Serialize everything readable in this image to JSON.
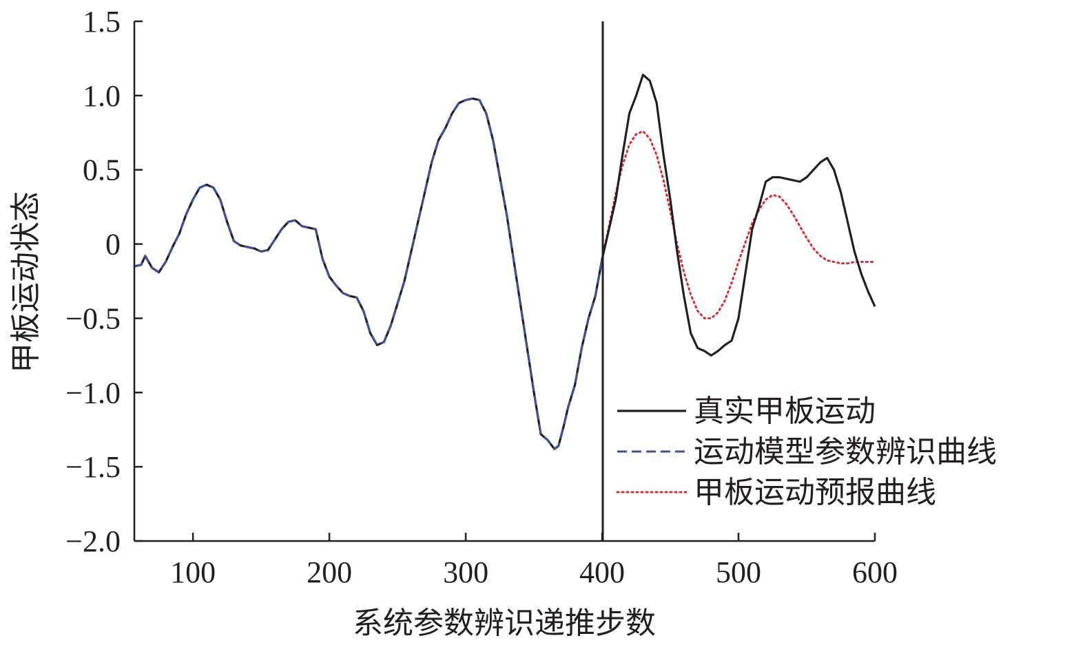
{
  "chart_data": {
    "type": "line",
    "title": "",
    "xlabel": "系统参数辨识递推步数",
    "ylabel": "甲板运动状态",
    "xlim": [
      57,
      600
    ],
    "ylim": [
      -2.0,
      1.5
    ],
    "xticks": [
      100,
      200,
      300,
      400,
      500,
      600
    ],
    "xtick_labels": [
      "100",
      "200",
      "300",
      "400",
      "500",
      "600"
    ],
    "yticks": [
      1.5,
      1.0,
      0.5,
      0,
      -0.5,
      -1.0,
      -1.5,
      -2.0
    ],
    "ytick_labels": [
      "1.5",
      "1.0",
      "0.5",
      "0",
      "−0.5",
      "−1.0",
      "−1.5",
      "−2.0"
    ],
    "grid": false,
    "legend_position": "lower-right",
    "annotations": [
      {
        "type": "vertical_line",
        "x": 400
      }
    ],
    "series": [
      {
        "name": "真实甲板运动",
        "color": "#231f20",
        "style": "solid",
        "x": [
          57,
          62,
          65,
          70,
          75,
          80,
          85,
          90,
          95,
          100,
          105,
          110,
          115,
          120,
          125,
          130,
          135,
          140,
          145,
          150,
          155,
          160,
          165,
          170,
          175,
          180,
          185,
          190,
          195,
          200,
          205,
          210,
          215,
          220,
          225,
          230,
          235,
          240,
          245,
          250,
          255,
          260,
          265,
          270,
          275,
          280,
          285,
          290,
          295,
          300,
          305,
          310,
          315,
          320,
          325,
          330,
          335,
          340,
          345,
          350,
          355,
          360,
          365,
          368,
          372,
          375,
          380,
          385,
          390,
          395,
          400,
          405,
          410,
          415,
          420,
          425,
          430,
          435,
          440,
          445,
          450,
          455,
          460,
          465,
          470,
          475,
          480,
          485,
          490,
          495,
          500,
          505,
          510,
          515,
          520,
          525,
          530,
          535,
          540,
          545,
          550,
          555,
          560,
          565,
          570,
          575,
          580,
          585,
          590,
          595,
          600
        ],
        "y": [
          -0.15,
          -0.14,
          -0.08,
          -0.16,
          -0.19,
          -0.12,
          -0.02,
          0.07,
          0.2,
          0.3,
          0.38,
          0.4,
          0.38,
          0.3,
          0.15,
          0.02,
          -0.01,
          -0.02,
          -0.03,
          -0.05,
          -0.04,
          0.03,
          0.1,
          0.15,
          0.16,
          0.12,
          0.11,
          0.1,
          -0.1,
          -0.22,
          -0.28,
          -0.33,
          -0.35,
          -0.36,
          -0.45,
          -0.6,
          -0.68,
          -0.66,
          -0.55,
          -0.4,
          -0.25,
          -0.05,
          0.15,
          0.35,
          0.55,
          0.7,
          0.78,
          0.88,
          0.95,
          0.97,
          0.98,
          0.97,
          0.88,
          0.7,
          0.45,
          0.2,
          -0.1,
          -0.4,
          -0.7,
          -1.0,
          -1.28,
          -1.32,
          -1.38,
          -1.36,
          -1.22,
          -1.1,
          -0.95,
          -0.7,
          -0.5,
          -0.35,
          -0.1,
          0.1,
          0.3,
          0.6,
          0.88,
          1.0,
          1.14,
          1.1,
          0.95,
          0.6,
          0.3,
          -0.05,
          -0.35,
          -0.6,
          -0.7,
          -0.72,
          -0.75,
          -0.72,
          -0.68,
          -0.65,
          -0.5,
          -0.2,
          0.1,
          0.25,
          0.42,
          0.45,
          0.45,
          0.44,
          0.43,
          0.42,
          0.45,
          0.5,
          0.55,
          0.58,
          0.5,
          0.35,
          0.15,
          -0.05,
          -0.2,
          -0.32,
          -0.42
        ]
      },
      {
        "name": "运动模型参数辨识曲线",
        "color": "#3c4fa0",
        "style": "dashed",
        "x": [
          57,
          62,
          65,
          70,
          75,
          80,
          85,
          90,
          95,
          100,
          105,
          110,
          115,
          120,
          125,
          130,
          135,
          140,
          145,
          150,
          155,
          160,
          165,
          170,
          175,
          180,
          185,
          190,
          195,
          200,
          205,
          210,
          215,
          220,
          225,
          230,
          235,
          240,
          245,
          250,
          255,
          260,
          265,
          270,
          275,
          280,
          285,
          290,
          295,
          300,
          305,
          310,
          315,
          320,
          325,
          330,
          335,
          340,
          345,
          350,
          355,
          360,
          365,
          368,
          372,
          375,
          380,
          385,
          390,
          395,
          400
        ],
        "y": [
          -0.15,
          -0.14,
          -0.08,
          -0.16,
          -0.19,
          -0.12,
          -0.02,
          0.07,
          0.2,
          0.3,
          0.38,
          0.4,
          0.38,
          0.3,
          0.15,
          0.02,
          -0.01,
          -0.02,
          -0.03,
          -0.05,
          -0.04,
          0.03,
          0.1,
          0.15,
          0.16,
          0.12,
          0.11,
          0.1,
          -0.1,
          -0.22,
          -0.28,
          -0.33,
          -0.35,
          -0.36,
          -0.45,
          -0.6,
          -0.68,
          -0.66,
          -0.55,
          -0.4,
          -0.25,
          -0.05,
          0.15,
          0.35,
          0.55,
          0.7,
          0.78,
          0.88,
          0.95,
          0.97,
          0.98,
          0.97,
          0.88,
          0.7,
          0.45,
          0.2,
          -0.1,
          -0.4,
          -0.7,
          -1.0,
          -1.28,
          -1.32,
          -1.38,
          -1.36,
          -1.22,
          -1.1,
          -0.95,
          -0.7,
          -0.5,
          -0.35,
          -0.1
        ]
      },
      {
        "name": "甲板运动预报曲线",
        "color": "#e5252a",
        "style": "dotted",
        "x": [
          57,
          62,
          65,
          70,
          75,
          80,
          85,
          90,
          95,
          100,
          105,
          110,
          115,
          120,
          125,
          130,
          135,
          140,
          145,
          150,
          155,
          160,
          165,
          170,
          175,
          180,
          185,
          190,
          195,
          200,
          205,
          210,
          215,
          220,
          225,
          230,
          235,
          240,
          245,
          250,
          255,
          260,
          265,
          270,
          275,
          280,
          285,
          290,
          295,
          300,
          305,
          310,
          315,
          320,
          325,
          330,
          335,
          340,
          345,
          350,
          355,
          360,
          365,
          368,
          372,
          375,
          380,
          385,
          390,
          395,
          400,
          405,
          410,
          415,
          420,
          425,
          430,
          435,
          440,
          445,
          450,
          455,
          460,
          465,
          470,
          475,
          480,
          485,
          490,
          495,
          500,
          505,
          510,
          515,
          520,
          525,
          530,
          535,
          540,
          545,
          550,
          555,
          560,
          565,
          570,
          575,
          580,
          585,
          590,
          595,
          600
        ],
        "y": [
          -0.15,
          -0.14,
          -0.08,
          -0.16,
          -0.19,
          -0.12,
          -0.02,
          0.07,
          0.2,
          0.3,
          0.38,
          0.4,
          0.38,
          0.3,
          0.15,
          0.02,
          -0.01,
          -0.02,
          -0.03,
          -0.05,
          -0.04,
          0.03,
          0.1,
          0.15,
          0.16,
          0.12,
          0.11,
          0.1,
          -0.1,
          -0.22,
          -0.28,
          -0.33,
          -0.35,
          -0.36,
          -0.45,
          -0.6,
          -0.68,
          -0.66,
          -0.55,
          -0.4,
          -0.25,
          -0.05,
          0.15,
          0.35,
          0.55,
          0.7,
          0.78,
          0.88,
          0.95,
          0.97,
          0.98,
          0.97,
          0.88,
          0.7,
          0.45,
          0.2,
          -0.1,
          -0.4,
          -0.7,
          -1.0,
          -1.28,
          -1.32,
          -1.38,
          -1.36,
          -1.22,
          -1.1,
          -0.95,
          -0.7,
          -0.5,
          -0.35,
          -0.1,
          0.12,
          0.34,
          0.53,
          0.67,
          0.74,
          0.76,
          0.71,
          0.6,
          0.43,
          0.22,
          0.0,
          -0.19,
          -0.34,
          -0.45,
          -0.5,
          -0.5,
          -0.46,
          -0.38,
          -0.26,
          -0.12,
          0.01,
          0.14,
          0.23,
          0.3,
          0.33,
          0.32,
          0.27,
          0.2,
          0.12,
          0.04,
          -0.03,
          -0.08,
          -0.11,
          -0.12,
          -0.13,
          -0.13,
          -0.12,
          -0.12,
          -0.12,
          -0.12
        ]
      }
    ]
  }
}
